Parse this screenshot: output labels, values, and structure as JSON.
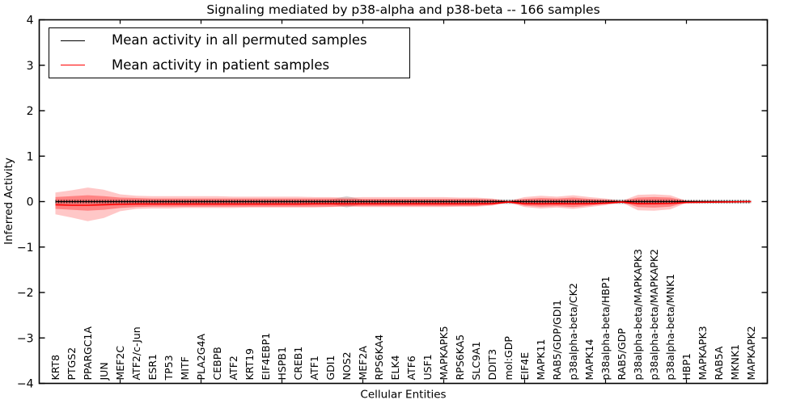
{
  "figure": {
    "title": "Signaling mediated by p38-alpha and p38-beta -- 166 samples",
    "xlabel": "Cellular Entities",
    "ylabel": "Inferred Activity"
  },
  "legend": {
    "items": [
      {
        "label": "Mean activity in all permuted samples",
        "color": "#000000"
      },
      {
        "label": "Mean activity in patient samples",
        "color": "#ff0000"
      }
    ]
  },
  "colors": {
    "patient_line": "#ff0000",
    "permuted_line": "#000000",
    "patient_band": "#ff0000",
    "permuted_band": "#bbbbbb",
    "frame": "#000000"
  },
  "chart_data": {
    "type": "line",
    "title": "Signaling mediated by p38-alpha and p38-beta -- 166 samples",
    "xlabel": "Cellular Entities",
    "ylabel": "Inferred Activity",
    "ylim": [
      -4,
      4
    ],
    "yticks": [
      4,
      3,
      2,
      1,
      0,
      -1,
      -2,
      -3,
      -4
    ],
    "xtick_step": 5,
    "grid": false,
    "legend_position": "upper left",
    "categories": [
      "KRT8",
      "PTGS2",
      "PPARGC1A",
      "JUN",
      "MEF2C",
      "ATF2/c-Jun",
      "ESR1",
      "TP53",
      "MITF",
      "PLA2G4A",
      "CEBPB",
      "ATF2",
      "KRT19",
      "EIF4EBP1",
      "HSPB1",
      "CREB1",
      "ATF1",
      "GDI1",
      "NOS2",
      "MEF2A",
      "RPS6KA4",
      "ELK4",
      "ATF6",
      "USF1",
      "MAPKAPK5",
      "RPS6KA5",
      "SLC9A1",
      "DDIT3",
      "mol:GDP",
      "EIF4E",
      "MAPK11",
      "RAB5/GDP/GDI1",
      "p38alpha-beta/CK2",
      "MAPK14",
      "p38alpha-beta/HBP1",
      "RAB5/GDP",
      "p38alpha-beta/MAPKAPK3",
      "p38alpha-beta/MAPKAPK2",
      "p38alpha-beta/MNK1",
      "HBP1",
      "MAPKAPK3",
      "RAB5A",
      "MKNK1",
      "MAPKAPK2"
    ],
    "series": [
      {
        "name": "Mean activity in all permuted samples",
        "color": "#000000",
        "errorbar_halfheight": 0.035,
        "values": [
          0,
          0,
          0,
          0,
          0,
          0,
          0,
          0,
          0,
          0,
          0,
          0,
          0,
          0,
          0,
          0,
          0,
          0,
          0,
          0,
          0,
          0,
          0,
          0,
          0,
          0,
          0,
          0,
          0,
          0,
          0,
          0,
          0,
          0,
          0,
          0,
          0,
          0,
          0,
          0,
          0,
          0,
          0,
          0
        ]
      },
      {
        "name": "Mean activity in patient samples",
        "color": "#ff0000",
        "values": [
          -0.07,
          -0.08,
          -0.08,
          -0.07,
          -0.06,
          -0.055,
          -0.055,
          -0.055,
          -0.055,
          -0.055,
          -0.055,
          -0.055,
          -0.055,
          -0.055,
          -0.055,
          -0.055,
          -0.05,
          -0.05,
          -0.05,
          -0.05,
          -0.05,
          -0.05,
          -0.05,
          -0.05,
          -0.05,
          -0.05,
          -0.05,
          -0.045,
          -0.01,
          -0.045,
          -0.05,
          -0.045,
          -0.05,
          -0.045,
          -0.035,
          -0.01,
          -0.045,
          -0.045,
          -0.04,
          -0.02,
          -0.015,
          -0.01,
          -0.005,
          0.0
        ]
      }
    ],
    "bands": {
      "patient_outer": {
        "color": "#ff0000",
        "opacity": 0.22,
        "upper": [
          0.2,
          0.25,
          0.31,
          0.26,
          0.16,
          0.13,
          0.12,
          0.12,
          0.12,
          0.12,
          0.12,
          0.11,
          0.11,
          0.11,
          0.11,
          0.11,
          0.1,
          0.1,
          0.09,
          0.1,
          0.1,
          0.1,
          0.1,
          0.1,
          0.1,
          0.09,
          0.09,
          0.07,
          0.015,
          0.1,
          0.13,
          0.11,
          0.14,
          0.1,
          0.07,
          0.015,
          0.15,
          0.16,
          0.14,
          0.02,
          0.015,
          0.012,
          0.01,
          0.01
        ],
        "lower": [
          -0.28,
          -0.35,
          -0.43,
          -0.36,
          -0.21,
          -0.16,
          -0.15,
          -0.15,
          -0.14,
          -0.14,
          -0.14,
          -0.14,
          -0.13,
          -0.13,
          -0.13,
          -0.13,
          -0.13,
          -0.12,
          -0.11,
          -0.12,
          -0.12,
          -0.12,
          -0.12,
          -0.12,
          -0.12,
          -0.11,
          -0.11,
          -0.09,
          -0.02,
          -0.12,
          -0.15,
          -0.13,
          -0.16,
          -0.12,
          -0.08,
          -0.02,
          -0.19,
          -0.2,
          -0.17,
          -0.03,
          -0.02,
          -0.016,
          -0.012,
          -0.012
        ]
      },
      "patient_inner": {
        "color": "#ff0000",
        "opacity": 0.34,
        "upper": [
          0.1,
          0.12,
          0.14,
          0.12,
          0.09,
          0.08,
          0.07,
          0.07,
          0.07,
          0.07,
          0.07,
          0.07,
          0.07,
          0.07,
          0.07,
          0.07,
          0.07,
          0.07,
          0.06,
          0.06,
          0.06,
          0.06,
          0.06,
          0.06,
          0.06,
          0.06,
          0.06,
          0.05,
          0.01,
          0.06,
          0.08,
          0.07,
          0.09,
          0.06,
          0.04,
          0.01,
          0.09,
          0.1,
          0.09,
          0.015,
          0.01,
          0.008,
          0.007,
          0.007
        ],
        "lower": [
          -0.16,
          -0.18,
          -0.2,
          -0.18,
          -0.14,
          -0.12,
          -0.11,
          -0.11,
          -0.11,
          -0.11,
          -0.11,
          -0.11,
          -0.11,
          -0.11,
          -0.11,
          -0.11,
          -0.11,
          -0.11,
          -0.1,
          -0.1,
          -0.1,
          -0.1,
          -0.1,
          -0.1,
          -0.1,
          -0.1,
          -0.1,
          -0.07,
          -0.013,
          -0.09,
          -0.11,
          -0.1,
          -0.12,
          -0.09,
          -0.05,
          -0.013,
          -0.12,
          -0.13,
          -0.11,
          -0.022,
          -0.015,
          -0.012,
          -0.01,
          -0.01
        ]
      },
      "permuted": {
        "color": "#bbbbbb",
        "opacity": 0.55,
        "upper": [
          0.045,
          0.045,
          0.045,
          0.045,
          0.045,
          0.045,
          0.045,
          0.045,
          0.045,
          0.045,
          0.045,
          0.045,
          0.045,
          0.045,
          0.045,
          0.045,
          0.045,
          0.045,
          0.12,
          0.045,
          0.045,
          0.045,
          0.045,
          0.045,
          0.045,
          0.045,
          0.045,
          0.045,
          0.05,
          0.045,
          0.045,
          0.045,
          0.045,
          0.045,
          0.045,
          0.05,
          0.045,
          0.045,
          0.045,
          0.035,
          0.035,
          0.035,
          0.035,
          0.035
        ],
        "lower": [
          -0.05,
          -0.05,
          -0.05,
          -0.05,
          -0.05,
          -0.05,
          -0.05,
          -0.05,
          -0.05,
          -0.05,
          -0.05,
          -0.05,
          -0.05,
          -0.05,
          -0.05,
          -0.05,
          -0.05,
          -0.05,
          -0.13,
          -0.05,
          -0.05,
          -0.05,
          -0.05,
          -0.05,
          -0.05,
          -0.05,
          -0.05,
          -0.05,
          -0.055,
          -0.05,
          -0.05,
          -0.05,
          -0.05,
          -0.05,
          -0.05,
          -0.055,
          -0.05,
          -0.05,
          -0.05,
          -0.04,
          -0.04,
          -0.04,
          -0.04,
          -0.04
        ]
      }
    }
  }
}
